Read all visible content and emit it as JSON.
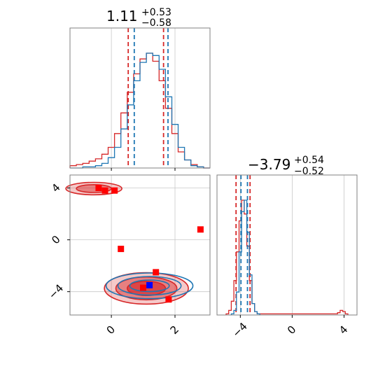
{
  "colors": {
    "red": "#d62728",
    "blue": "#1f77b4",
    "marker_red": "#ff0000",
    "marker_blue": "#0000ff"
  },
  "titles": {
    "p1": {
      "median": "1.11",
      "plus": "+0.53",
      "minus": "−0.58"
    },
    "p2": {
      "median": "−3.79",
      "plus": "+0.54",
      "minus": "−0.52"
    }
  },
  "chart_data": [
    {
      "type": "histogram",
      "panel": "top-left",
      "parameter_index": 1,
      "x_range": [
        -1.3,
        3.1
      ],
      "x_ticks": [
        0,
        2
      ],
      "grid": true,
      "series": [
        {
          "color": "red",
          "quantile_lines": [
            0.53,
            1.64
          ],
          "x": [
            -1.2,
            -1.0,
            -0.8,
            -0.6,
            -0.4,
            -0.2,
            0.0,
            0.2,
            0.4,
            0.6,
            0.8,
            1.0,
            1.2,
            1.4,
            1.6,
            1.8,
            2.0,
            2.2,
            2.4,
            2.6,
            2.8,
            3.0
          ],
          "density": [
            0.02,
            0.03,
            0.04,
            0.06,
            0.08,
            0.12,
            0.18,
            0.3,
            0.48,
            0.66,
            0.82,
            0.95,
            1.0,
            0.93,
            0.76,
            0.52,
            0.3,
            0.14,
            0.07,
            0.03,
            0.01,
            0.0
          ]
        },
        {
          "color": "blue",
          "quantile_lines": [
            0.72,
            1.78
          ],
          "x": [
            -1.2,
            -1.0,
            -0.8,
            -0.6,
            -0.4,
            -0.2,
            0.0,
            0.2,
            0.4,
            0.6,
            0.8,
            1.0,
            1.2,
            1.4,
            1.6,
            1.8,
            2.0,
            2.2,
            2.4,
            2.6,
            2.8,
            3.0
          ],
          "density": [
            0.0,
            0.0,
            0.01,
            0.01,
            0.02,
            0.04,
            0.09,
            0.18,
            0.34,
            0.55,
            0.76,
            0.92,
            1.0,
            0.98,
            0.86,
            0.62,
            0.38,
            0.18,
            0.07,
            0.02,
            0.01,
            0.0
          ]
        }
      ]
    },
    {
      "type": "histogram",
      "panel": "bottom-right",
      "parameter_index": 2,
      "x_range": [
        -5.8,
        5.0
      ],
      "x_ticks": [
        -4,
        0,
        4
      ],
      "x_tick_labels": [
        "−4",
        "0",
        "4"
      ],
      "grid": true,
      "series": [
        {
          "color": "red",
          "quantile_lines": [
            -4.33,
            -3.25
          ],
          "x": [
            -5.0,
            -4.8,
            -4.6,
            -4.4,
            -4.2,
            -4.0,
            -3.8,
            -3.6,
            -3.4,
            -3.2,
            -3.0,
            -2.8,
            -2.6,
            3.4,
            3.6,
            3.8,
            4.0,
            4.2
          ],
          "density": [
            0.01,
            0.04,
            0.12,
            0.3,
            0.55,
            0.82,
            1.0,
            0.88,
            0.6,
            0.3,
            0.1,
            0.03,
            0.01,
            0.01,
            0.02,
            0.04,
            0.03,
            0.01
          ]
        },
        {
          "color": "blue",
          "quantile_lines": [
            -3.95,
            -3.45
          ],
          "x": [
            -4.6,
            -4.4,
            -4.2,
            -4.0,
            -3.8,
            -3.6,
            -3.4,
            -3.2,
            -3.0,
            -2.8,
            -2.6
          ],
          "density": [
            0.01,
            0.04,
            0.2,
            0.55,
            0.9,
            1.0,
            0.72,
            0.35,
            0.1,
            0.03,
            0.01
          ]
        }
      ]
    },
    {
      "type": "scatter",
      "panel": "bottom-left",
      "x_parameter": 1,
      "y_parameter": 2,
      "x_range": [
        -1.3,
        3.1
      ],
      "y_range": [
        -5.8,
        5.0
      ],
      "x_ticks": [
        0,
        2
      ],
      "y_ticks": [
        -4,
        0,
        4
      ],
      "y_tick_labels": [
        "−4",
        "0",
        "4"
      ],
      "grid": true,
      "contours": [
        {
          "color": "red",
          "center": [
            1.1,
            -3.75
          ],
          "sigma": [
            0.6,
            0.55
          ],
          "levels": [
            1.0,
            1.6,
            2.2
          ],
          "filled": true
        },
        {
          "color": "red",
          "center": [
            -0.55,
            3.95
          ],
          "sigma": [
            0.55,
            0.3
          ],
          "levels": [
            1.0,
            1.6
          ],
          "filled": true
        },
        {
          "color": "blue",
          "center": [
            1.2,
            -3.55
          ],
          "sigma": [
            0.62,
            0.45
          ],
          "levels": [
            1.0,
            1.6,
            2.2
          ],
          "filled": false
        }
      ],
      "markers": {
        "red": [
          [
            -0.4,
            4.0
          ],
          [
            -0.2,
            3.8
          ],
          [
            0.1,
            3.8
          ],
          [
            2.8,
            0.8
          ],
          [
            0.3,
            -0.7
          ],
          [
            1.4,
            -2.5
          ],
          [
            1.8,
            -4.6
          ],
          [
            1.0,
            -3.7
          ]
        ],
        "blue": [
          [
            1.2,
            -3.5
          ]
        ]
      }
    }
  ]
}
